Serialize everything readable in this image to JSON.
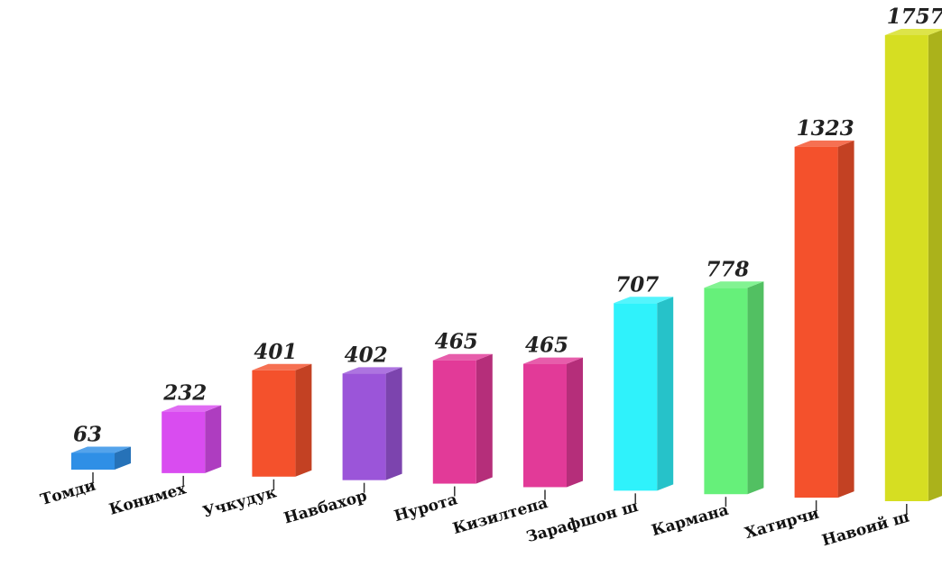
{
  "chart_data": {
    "type": "bar",
    "title": "",
    "xlabel": "",
    "ylabel": "",
    "categories": [
      "Томди",
      "Конимех",
      "Учкудук",
      "Навбахор",
      "Нурота",
      "Кизилтепа",
      "Зарафшон ш",
      "Кармана",
      "Хатирчи",
      "Навоий ш"
    ],
    "values": [
      63,
      232,
      401,
      402,
      465,
      465,
      707,
      778,
      1323,
      1757
    ],
    "colors": [
      "#2f8fe6",
      "#d94cf0",
      "#f4512c",
      "#9b55d9",
      "#e23a98",
      "#e23a98",
      "#2ff2fb",
      "#66f07a",
      "#f4512c",
      "#d6de22"
    ],
    "ylim": [
      0,
      1757
    ],
    "grid": false,
    "legend": "none",
    "style": "3d"
  }
}
